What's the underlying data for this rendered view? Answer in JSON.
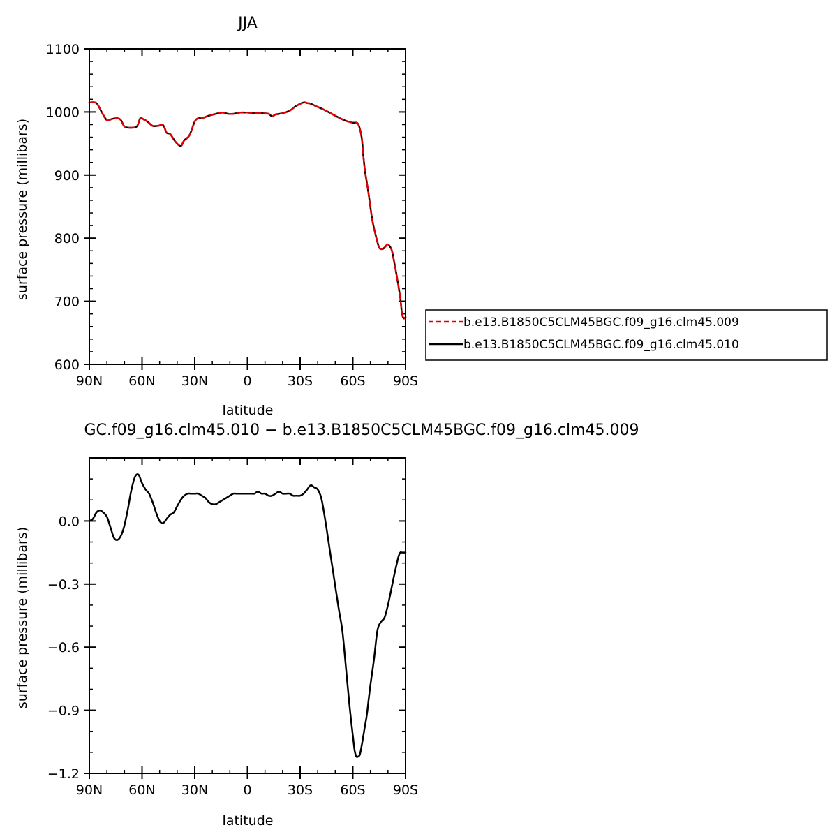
{
  "chart_data": [
    {
      "type": "line",
      "title": "JJA",
      "xlabel": "latitude",
      "ylabel": "surface pressure (millibars)",
      "xlim": [
        90,
        -90
      ],
      "ylim": [
        600,
        1100
      ],
      "x_ticks": [
        {
          "value": 90,
          "label": "90N"
        },
        {
          "value": 60,
          "label": "60N"
        },
        {
          "value": 30,
          "label": "30N"
        },
        {
          "value": 0,
          "label": "0"
        },
        {
          "value": -30,
          "label": "30S"
        },
        {
          "value": -60,
          "label": "60S"
        },
        {
          "value": -90,
          "label": "90S"
        }
      ],
      "y_ticks": [
        {
          "value": 600,
          "label": "600"
        },
        {
          "value": 700,
          "label": "700"
        },
        {
          "value": 800,
          "label": "800"
        },
        {
          "value": 900,
          "label": "900"
        },
        {
          "value": 1000,
          "label": "1000"
        },
        {
          "value": 1100,
          "label": "1100"
        }
      ],
      "legend": {
        "placement": "right",
        "entries": [
          {
            "name": "b.e13.B1850C5CLM45BGC.f09_g16.clm45.009",
            "color": "#e00000",
            "dash": "dashed"
          },
          {
            "name": "b.e13.B1850C5CLM45BGC.f09_g16.clm45.010",
            "color": "#000000",
            "dash": "solid"
          }
        ]
      },
      "series": [
        {
          "name": "b.e13.B1850C5CLM45BGC.f09_g16.clm45.009",
          "color": "#e00000",
          "dash": "dashed",
          "x": [
            90,
            86,
            83,
            80,
            77,
            74,
            72,
            70,
            67,
            63,
            61,
            59,
            57,
            54,
            51,
            48,
            46,
            44,
            41,
            38,
            36,
            33,
            30,
            28,
            26,
            22,
            18,
            14,
            11,
            8,
            4,
            0,
            -4,
            -8,
            -12,
            -14,
            -16,
            -20,
            -24,
            -28,
            -32,
            -34,
            -36,
            -40,
            -44,
            -48,
            -52,
            -56,
            -60,
            -63,
            -65,
            -66,
            -67,
            -69,
            -71,
            -73,
            -75,
            -77,
            -78,
            -80,
            -82,
            -83,
            -85,
            -87,
            -88,
            -89,
            -90
          ],
          "values": [
            1015,
            1014,
            1000,
            987,
            989,
            990,
            987,
            977,
            975,
            977,
            990,
            988,
            985,
            978,
            978,
            979,
            967,
            965,
            953,
            946,
            955,
            963,
            985,
            990,
            990,
            994,
            997,
            999,
            997,
            997,
            999,
            999,
            998,
            998,
            997,
            993,
            996,
            998,
            1002,
            1010,
            1015,
            1014,
            1013,
            1008,
            1003,
            997,
            991,
            986,
            983,
            981,
            960,
            930,
            905,
            870,
            830,
            805,
            785,
            783,
            785,
            790,
            782,
            770,
            740,
            705,
            680,
            673,
            675
          ]
        },
        {
          "name": "b.e13.B1850C5CLM45BGC.f09_g16.clm45.010",
          "color": "#000000",
          "dash": "solid",
          "x": [
            90,
            86,
            83,
            80,
            77,
            74,
            72,
            70,
            67,
            63,
            61,
            59,
            57,
            54,
            51,
            48,
            46,
            44,
            41,
            38,
            36,
            33,
            30,
            28,
            26,
            22,
            18,
            14,
            11,
            8,
            4,
            0,
            -4,
            -8,
            -12,
            -14,
            -16,
            -20,
            -24,
            -28,
            -32,
            -34,
            -36,
            -40,
            -44,
            -48,
            -52,
            -56,
            -60,
            -63,
            -65,
            -66,
            -67,
            -69,
            -71,
            -73,
            -75,
            -77,
            -78,
            -80,
            -82,
            -83,
            -85,
            -87,
            -88,
            -89,
            -90
          ],
          "values": [
            1015,
            1014,
            1000,
            987,
            989,
            990,
            987,
            977,
            975,
            977,
            990,
            988,
            985,
            978,
            978,
            979,
            967,
            965,
            953,
            946,
            955,
            963,
            985,
            990,
            990,
            994,
            997,
            999,
            997,
            997,
            999,
            999,
            998,
            998,
            997,
            993,
            996,
            998,
            1002,
            1010,
            1015,
            1014,
            1013,
            1008,
            1003,
            997,
            991,
            986,
            983,
            981,
            960,
            930,
            905,
            870,
            830,
            805,
            785,
            783,
            785,
            790,
            782,
            770,
            740,
            705,
            680,
            673,
            675
          ]
        }
      ]
    },
    {
      "type": "line",
      "title": "GC.f09_g16.clm45.010 − b.e13.B1850C5CLM45BGC.f09_g16.clm45.009",
      "xlabel": "latitude",
      "ylabel": "surface pressure (millibars)",
      "xlim": [
        90,
        -90
      ],
      "ylim": [
        -1.2,
        0.3
      ],
      "x_ticks": [
        {
          "value": 90,
          "label": "90N"
        },
        {
          "value": 60,
          "label": "60N"
        },
        {
          "value": 30,
          "label": "30N"
        },
        {
          "value": 0,
          "label": "0"
        },
        {
          "value": -30,
          "label": "30S"
        },
        {
          "value": -60,
          "label": "60S"
        },
        {
          "value": -90,
          "label": "90S"
        }
      ],
      "y_ticks": [
        {
          "value": 0.0,
          "label": "0.0"
        },
        {
          "value": -0.3,
          "label": "−0.3"
        },
        {
          "value": -0.6,
          "label": "−0.6"
        },
        {
          "value": -0.9,
          "label": "−0.9"
        },
        {
          "value": -1.2,
          "label": "−1.2"
        }
      ],
      "series": [
        {
          "color": "#000000",
          "dash": "solid",
          "x": [
            90,
            88,
            86,
            84,
            82,
            80,
            78,
            76,
            74,
            72,
            70,
            68,
            66,
            64,
            62,
            60,
            58,
            56,
            54,
            52,
            50,
            48,
            46,
            44,
            42,
            40,
            38,
            36,
            34,
            32,
            30,
            28,
            26,
            24,
            22,
            20,
            18,
            16,
            14,
            12,
            10,
            8,
            6,
            4,
            2,
            0,
            -2,
            -4,
            -6,
            -8,
            -10,
            -12,
            -14,
            -16,
            -18,
            -20,
            -22,
            -24,
            -26,
            -28,
            -30,
            -32,
            -34,
            -36,
            -38,
            -40,
            -42,
            -44,
            -46,
            -48,
            -50,
            -52,
            -54,
            -56,
            -58,
            -60,
            -61,
            -62,
            -63,
            -64,
            -65,
            -66,
            -67,
            -68,
            -69,
            -70,
            -72,
            -74,
            -76,
            -78,
            -80,
            -82,
            -84,
            -86,
            -87,
            -88,
            -89,
            -90
          ],
          "values": [
            0.0,
            0.01,
            0.04,
            0.05,
            0.04,
            0.02,
            -0.03,
            -0.08,
            -0.09,
            -0.07,
            -0.02,
            0.06,
            0.15,
            0.21,
            0.22,
            0.18,
            0.15,
            0.13,
            0.09,
            0.04,
            0.0,
            -0.01,
            0.01,
            0.03,
            0.04,
            0.07,
            0.1,
            0.12,
            0.13,
            0.13,
            0.13,
            0.13,
            0.12,
            0.11,
            0.09,
            0.08,
            0.08,
            0.09,
            0.1,
            0.11,
            0.12,
            0.13,
            0.13,
            0.13,
            0.13,
            0.13,
            0.13,
            0.13,
            0.14,
            0.13,
            0.13,
            0.12,
            0.12,
            0.13,
            0.14,
            0.13,
            0.13,
            0.13,
            0.12,
            0.12,
            0.12,
            0.13,
            0.15,
            0.17,
            0.16,
            0.15,
            0.11,
            0.02,
            -0.09,
            -0.2,
            -0.31,
            -0.42,
            -0.52,
            -0.69,
            -0.87,
            -1.02,
            -1.09,
            -1.12,
            -1.12,
            -1.11,
            -1.07,
            -1.02,
            -0.97,
            -0.92,
            -0.85,
            -0.78,
            -0.66,
            -0.52,
            -0.48,
            -0.46,
            -0.4,
            -0.32,
            -0.24,
            -0.17,
            -0.15,
            -0.15,
            -0.15,
            -0.15
          ]
        }
      ]
    }
  ]
}
